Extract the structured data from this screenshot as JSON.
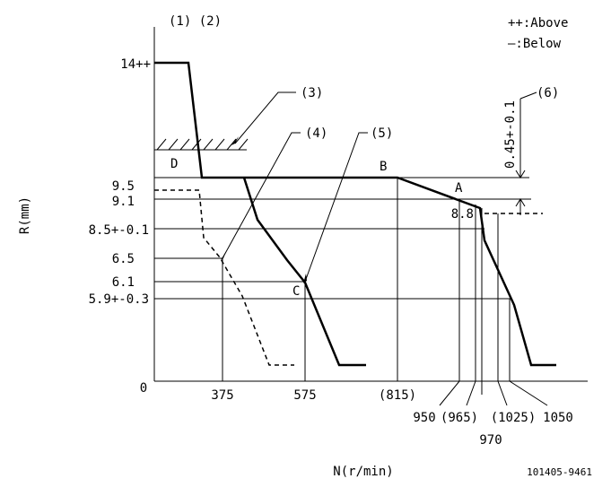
{
  "header": {
    "refs": "(1) (2)",
    "legend_above": "++:Above",
    "legend_below": "—:Below"
  },
  "axes": {
    "y_title": "R(mm)",
    "x_title": "N(r/min)"
  },
  "y_labels": [
    "14++",
    "9.5",
    "9.1",
    "8.5+-0.1",
    "6.5",
    "6.1",
    "5.9+-0.3"
  ],
  "x_labels": [
    "0",
    "375",
    "575",
    "(815)",
    "950",
    "(965)",
    "970",
    "(1025)",
    "1050"
  ],
  "callouts": [
    "(3)",
    "(4)",
    "(5)",
    "(6)"
  ],
  "points": [
    "D",
    "B",
    "A",
    "C"
  ],
  "annotations": {
    "right_value": "8.8",
    "tolerance": "0.45+-0.1"
  },
  "footer": {
    "code": "101405-9461"
  }
}
